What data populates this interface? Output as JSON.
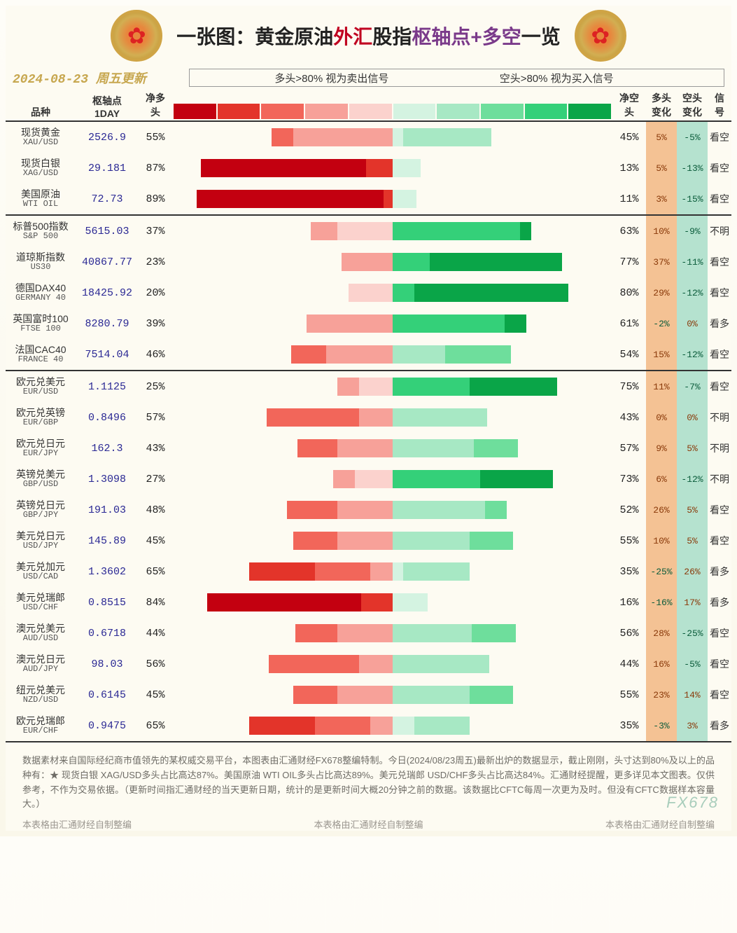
{
  "title": {
    "t1": "一张图：黄金原油",
    "t2": "外汇",
    "t3": "股指",
    "t4": "枢轴点",
    "t5": "+多空",
    "t6": "一览"
  },
  "date_line": "2024-08-23 周五更新",
  "legend_left": "多头>80% 视为卖出信号",
  "legend_right": "空头>80% 视为买入信号",
  "gradientColors": {
    "red": [
      "#c30010",
      "#e3342a",
      "#f2665a",
      "#f7a199",
      "#fbd2cd"
    ],
    "green": [
      "#d4f3e1",
      "#a7e8c4",
      "#6ede9c",
      "#34d079",
      "#0aa548"
    ]
  },
  "columns": {
    "name": "品种",
    "pivot": "枢轴点\n1DAY",
    "net_long": "净多\n头",
    "net_short": "净空\n头",
    "long_chg": "多头\n变化",
    "short_chg": "空头\n变化",
    "signal": "信\n号"
  },
  "chg_colors": {
    "long_bg": "#f4c294",
    "short_bg": "#b5e2cf",
    "pos_text": "#8a3a0a",
    "neg_text": "#0b5c3b"
  },
  "groups": [
    {
      "rows": [
        {
          "name_cn": "现货黄金",
          "name_en": "XAU/USD",
          "pivot": "2526.9",
          "long": 55,
          "short": 45,
          "long_bar": [
            0,
            0,
            10,
            45,
            0
          ],
          "short_bar": [
            5,
            40,
            0,
            0,
            0
          ],
          "lc": "5%",
          "sc": "-5%",
          "sig": "看空"
        },
        {
          "name_cn": "现货白银",
          "name_en": "XAG/USD",
          "pivot": "29.181",
          "long": 87,
          "short": 13,
          "long_bar": [
            75,
            12,
            0,
            0,
            0
          ],
          "short_bar": [
            13,
            0,
            0,
            0,
            0
          ],
          "lc": "5%",
          "sc": "-13%",
          "sig": "看空"
        },
        {
          "name_cn": "美国原油",
          "name_en": "WTI OIL",
          "pivot": "72.73",
          "long": 89,
          "short": 11,
          "long_bar": [
            85,
            4,
            0,
            0,
            0
          ],
          "short_bar": [
            11,
            0,
            0,
            0,
            0
          ],
          "lc": "3%",
          "sc": "-15%",
          "sig": "看空"
        }
      ]
    },
    {
      "rows": [
        {
          "name_cn": "标普500指数",
          "name_en": "S&P 500",
          "pivot": "5615.03",
          "long": 37,
          "short": 63,
          "long_bar": [
            0,
            0,
            0,
            12,
            25
          ],
          "short_bar": [
            0,
            0,
            0,
            58,
            5
          ],
          "lc": "10%",
          "sc": "-9%",
          "sig": "不明"
        },
        {
          "name_cn": "道琼斯指数",
          "name_en": "US30",
          "pivot": "40867.77",
          "long": 23,
          "short": 77,
          "long_bar": [
            0,
            0,
            0,
            23,
            0
          ],
          "short_bar": [
            0,
            0,
            0,
            17,
            60
          ],
          "lc": "37%",
          "sc": "-11%",
          "sig": "看空"
        },
        {
          "name_cn": "德国DAX40",
          "name_en": "GERMANY 40",
          "pivot": "18425.92",
          "long": 20,
          "short": 80,
          "long_bar": [
            0,
            0,
            0,
            0,
            20
          ],
          "short_bar": [
            0,
            0,
            0,
            10,
            70
          ],
          "lc": "29%",
          "sc": "-12%",
          "sig": "看空"
        },
        {
          "name_cn": "英国富时100",
          "name_en": "FTSE 100",
          "pivot": "8280.79",
          "long": 39,
          "short": 61,
          "long_bar": [
            0,
            0,
            0,
            39,
            0
          ],
          "short_bar": [
            0,
            0,
            0,
            51,
            10
          ],
          "lc": "-2%",
          "sc": "0%",
          "sig": "看多"
        },
        {
          "name_cn": "法国CAC40",
          "name_en": "FRANCE 40",
          "pivot": "7514.04",
          "long": 46,
          "short": 54,
          "long_bar": [
            0,
            0,
            16,
            30,
            0
          ],
          "short_bar": [
            0,
            24,
            30,
            0,
            0
          ],
          "lc": "15%",
          "sc": "-12%",
          "sig": "看空"
        }
      ]
    },
    {
      "rows": [
        {
          "name_cn": "欧元兑美元",
          "name_en": "EUR/USD",
          "pivot": "1.1125",
          "long": 25,
          "short": 75,
          "long_bar": [
            0,
            0,
            0,
            10,
            15
          ],
          "short_bar": [
            0,
            0,
            0,
            35,
            40
          ],
          "lc": "11%",
          "sc": "-7%",
          "sig": "看空"
        },
        {
          "name_cn": "欧元兑英镑",
          "name_en": "EUR/GBP",
          "pivot": "0.8496",
          "long": 57,
          "short": 43,
          "long_bar": [
            0,
            0,
            42,
            15,
            0
          ],
          "short_bar": [
            0,
            43,
            0,
            0,
            0
          ],
          "lc": "0%",
          "sc": "0%",
          "sig": "不明"
        },
        {
          "name_cn": "欧元兑日元",
          "name_en": "EUR/JPY",
          "pivot": "162.3",
          "long": 43,
          "short": 57,
          "long_bar": [
            0,
            0,
            18,
            25,
            0
          ],
          "short_bar": [
            0,
            37,
            20,
            0,
            0
          ],
          "lc": "9%",
          "sc": "5%",
          "sig": "不明"
        },
        {
          "name_cn": "英镑兑美元",
          "name_en": "GBP/USD",
          "pivot": "1.3098",
          "long": 27,
          "short": 73,
          "long_bar": [
            0,
            0,
            0,
            10,
            17
          ],
          "short_bar": [
            0,
            0,
            0,
            40,
            33
          ],
          "lc": "6%",
          "sc": "-12%",
          "sig": "不明"
        },
        {
          "name_cn": "英镑兑日元",
          "name_en": "GBP/JPY",
          "pivot": "191.03",
          "long": 48,
          "short": 52,
          "long_bar": [
            0,
            0,
            23,
            25,
            0
          ],
          "short_bar": [
            0,
            42,
            10,
            0,
            0
          ],
          "lc": "26%",
          "sc": "5%",
          "sig": "看空"
        },
        {
          "name_cn": "美元兑日元",
          "name_en": "USD/JPY",
          "pivot": "145.89",
          "long": 45,
          "short": 55,
          "long_bar": [
            0,
            0,
            20,
            25,
            0
          ],
          "short_bar": [
            0,
            35,
            20,
            0,
            0
          ],
          "lc": "10%",
          "sc": "5%",
          "sig": "看空"
        },
        {
          "name_cn": "美元兑加元",
          "name_en": "USD/CAD",
          "pivot": "1.3602",
          "long": 65,
          "short": 35,
          "long_bar": [
            0,
            30,
            25,
            10,
            0
          ],
          "short_bar": [
            5,
            30,
            0,
            0,
            0
          ],
          "lc": "-25%",
          "sc": "26%",
          "sig": "看多"
        },
        {
          "name_cn": "美元兑瑞郎",
          "name_en": "USD/CHF",
          "pivot": "0.8515",
          "long": 84,
          "short": 16,
          "long_bar": [
            70,
            14,
            0,
            0,
            0
          ],
          "short_bar": [
            16,
            0,
            0,
            0,
            0
          ],
          "lc": "-16%",
          "sc": "17%",
          "sig": "看多"
        },
        {
          "name_cn": "澳元兑美元",
          "name_en": "AUD/USD",
          "pivot": "0.6718",
          "long": 44,
          "short": 56,
          "long_bar": [
            0,
            0,
            19,
            25,
            0
          ],
          "short_bar": [
            0,
            36,
            20,
            0,
            0
          ],
          "lc": "28%",
          "sc": "-25%",
          "sig": "看空"
        },
        {
          "name_cn": "澳元兑日元",
          "name_en": "AUD/JPY",
          "pivot": "98.03",
          "long": 56,
          "short": 44,
          "long_bar": [
            0,
            0,
            41,
            15,
            0
          ],
          "short_bar": [
            0,
            44,
            0,
            0,
            0
          ],
          "lc": "16%",
          "sc": "-5%",
          "sig": "看空"
        },
        {
          "name_cn": "纽元兑美元",
          "name_en": "NZD/USD",
          "pivot": "0.6145",
          "long": 45,
          "short": 55,
          "long_bar": [
            0,
            0,
            20,
            25,
            0
          ],
          "short_bar": [
            0,
            35,
            20,
            0,
            0
          ],
          "lc": "23%",
          "sc": "14%",
          "sig": "看空"
        },
        {
          "name_cn": "欧元兑瑞郎",
          "name_en": "EUR/CHF",
          "pivot": "0.9475",
          "long": 65,
          "short": 35,
          "long_bar": [
            0,
            30,
            25,
            10,
            0
          ],
          "short_bar": [
            10,
            25,
            0,
            0,
            0
          ],
          "lc": "-3%",
          "sc": "3%",
          "sig": "看多"
        }
      ]
    }
  ],
  "footer_text": "数据素材来自国际经纪商市值领先的某权威交易平台，本图表由汇通财经FX678整编特制。今日(2024/08/23周五)最新出炉的数据显示，截止刚刚，头寸达到80%及以上的品种有：★ 现货白银 XAG/USD多头占比高达87%。美国原油 WTI OIL多头占比高达89%。美元兑瑞郎 USD/CHF多头占比高达84%。汇通财经提醒，更多详见本文图表。仅供参考，不作为交易依据。（更新时间指汇通财经的当天更新日期，统计的是更新时间大概20分钟之前的数据。该数据比CFTC每周一次更为及时。但没有CFTC数据样本容量大。）",
  "watermark": "FX678",
  "credit": "本表格由汇通财经自制整编"
}
